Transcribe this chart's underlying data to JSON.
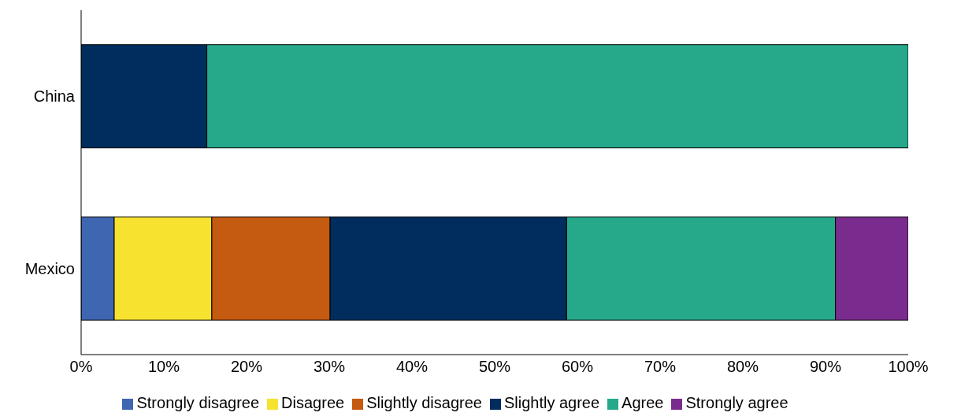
{
  "chart_data": {
    "type": "bar",
    "orientation": "horizontal",
    "stacked": true,
    "categories": [
      "China",
      "Mexico"
    ],
    "series": [
      {
        "name": "Strongly disagree",
        "color": "#3f66b0",
        "values": [
          null,
          4.0
        ]
      },
      {
        "name": "Disagree",
        "color": "#f6e22f",
        "values": [
          null,
          11.8
        ]
      },
      {
        "name": "Slightly disagree",
        "color": "#c55a11",
        "values": [
          null,
          14.3
        ]
      },
      {
        "name": "Slightly agree",
        "color": "#002d5e",
        "values": [
          15.2,
          28.6
        ]
      },
      {
        "name": "Agree",
        "color": "#26a98a",
        "values": [
          84.8,
          32.5
        ]
      },
      {
        "name": "Strongly agree",
        "color": "#7a2c8e",
        "values": [
          null,
          8.8
        ]
      }
    ],
    "xlim": [
      0,
      100
    ],
    "xticks": [
      {
        "value": 0,
        "label": "0%"
      },
      {
        "value": 10,
        "label": "10%"
      },
      {
        "value": 20,
        "label": "20%"
      },
      {
        "value": 30,
        "label": "30%"
      },
      {
        "value": 40,
        "label": "40%"
      },
      {
        "value": 50,
        "label": "50%"
      },
      {
        "value": 60,
        "label": "60%"
      },
      {
        "value": 70,
        "label": "70%"
      },
      {
        "value": 80,
        "label": "80%"
      },
      {
        "value": 90,
        "label": "90%"
      },
      {
        "value": 100,
        "label": "100%"
      }
    ],
    "grid": false,
    "legend": "bottom"
  }
}
